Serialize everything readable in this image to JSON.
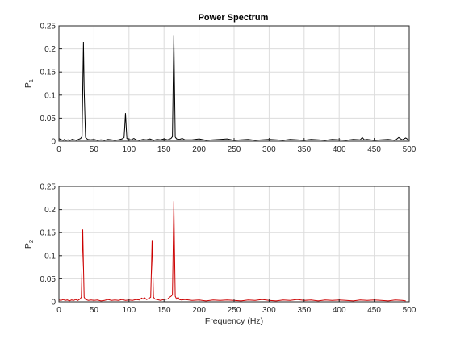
{
  "chart_data": [
    {
      "type": "line",
      "title": "Power Spectrum",
      "ylabel": "P",
      "ylabel_sub": "1",
      "xlabel": "",
      "xlim": [
        0,
        500
      ],
      "ylim": [
        0,
        0.25
      ],
      "xticks": [
        0,
        50,
        100,
        150,
        200,
        250,
        300,
        350,
        400,
        450,
        500
      ],
      "yticks": [
        0,
        0.05,
        0.1,
        0.15,
        0.2,
        0.25
      ],
      "yticklabels": [
        "0",
        "0.05",
        "0.1",
        "0.15",
        "0.2",
        "0.25"
      ],
      "grid": true,
      "color": "#000000",
      "series": [
        {
          "x": [
            0,
            2,
            4,
            6,
            8,
            10,
            13,
            16,
            19,
            22,
            25,
            28,
            31,
            33,
            34,
            35,
            36,
            38,
            41,
            45,
            50,
            55,
            60,
            65,
            70,
            75,
            80,
            85,
            90,
            93,
            94,
            95,
            96,
            97,
            99,
            103,
            107,
            110,
            115,
            120,
            125,
            130,
            135,
            140,
            145,
            150,
            155,
            160,
            162,
            163,
            164,
            165,
            166,
            168,
            172,
            176,
            180,
            190,
            200,
            210,
            220,
            230,
            240,
            250,
            260,
            270,
            280,
            290,
            300,
            310,
            320,
            330,
            340,
            350,
            360,
            370,
            380,
            390,
            400,
            410,
            420,
            430,
            433,
            436,
            440,
            450,
            460,
            470,
            480,
            485,
            490,
            495,
            500
          ],
          "y": [
            0.006,
            0.004,
            0.003,
            0.002,
            0.004,
            0.002,
            0.003,
            0.002,
            0.004,
            0.003,
            0.002,
            0.004,
            0.006,
            0.01,
            0.113,
            0.215,
            0.113,
            0.008,
            0.004,
            0.003,
            0.004,
            0.002,
            0.003,
            0.002,
            0.004,
            0.003,
            0.002,
            0.003,
            0.005,
            0.008,
            0.032,
            0.061,
            0.032,
            0.006,
            0.004,
            0.003,
            0.006,
            0.003,
            0.002,
            0.004,
            0.003,
            0.005,
            0.002,
            0.004,
            0.003,
            0.005,
            0.003,
            0.006,
            0.01,
            0.118,
            0.23,
            0.118,
            0.009,
            0.005,
            0.004,
            0.006,
            0.003,
            0.003,
            0.005,
            0.002,
            0.003,
            0.004,
            0.005,
            0.002,
            0.003,
            0.004,
            0.002,
            0.003,
            0.004,
            0.003,
            0.002,
            0.004,
            0.003,
            0.002,
            0.004,
            0.003,
            0.002,
            0.004,
            0.003,
            0.002,
            0.004,
            0.003,
            0.008,
            0.003,
            0.004,
            0.002,
            0.003,
            0.004,
            0.002,
            0.008,
            0.003,
            0.007,
            0.002
          ]
        }
      ]
    },
    {
      "type": "line",
      "title": "",
      "ylabel": "P",
      "ylabel_sub": "2",
      "xlabel": "Frequency (Hz)",
      "xlim": [
        0,
        500
      ],
      "ylim": [
        0,
        0.25
      ],
      "xticks": [
        0,
        50,
        100,
        150,
        200,
        250,
        300,
        350,
        400,
        450,
        500
      ],
      "yticks": [
        0,
        0.05,
        0.1,
        0.15,
        0.2,
        0.25
      ],
      "yticklabels": [
        "0",
        "0.05",
        "0.1",
        "0.15",
        "0.2",
        "0.25"
      ],
      "grid": true,
      "color": "#cc0000",
      "series": [
        {
          "x": [
            0,
            3,
            6,
            9,
            12,
            15,
            18,
            21,
            24,
            27,
            30,
            32,
            33,
            34,
            35,
            36,
            38,
            42,
            46,
            50,
            55,
            60,
            65,
            70,
            75,
            80,
            85,
            90,
            95,
            100,
            105,
            110,
            115,
            118,
            120,
            122,
            125,
            128,
            131,
            132,
            133,
            134,
            135,
            137,
            140,
            145,
            150,
            155,
            158,
            160,
            162,
            163,
            164,
            165,
            166,
            168,
            170,
            172,
            175,
            180,
            190,
            200,
            210,
            220,
            230,
            240,
            250,
            260,
            270,
            280,
            290,
            300,
            310,
            320,
            330,
            340,
            350,
            360,
            370,
            380,
            390,
            400,
            410,
            420,
            430,
            440,
            450,
            460,
            470,
            480,
            490,
            495
          ],
          "y": [
            0.004,
            0.003,
            0.005,
            0.003,
            0.004,
            0.002,
            0.004,
            0.003,
            0.005,
            0.003,
            0.006,
            0.01,
            0.08,
            0.157,
            0.08,
            0.01,
            0.005,
            0.003,
            0.004,
            0.003,
            0.004,
            0.002,
            0.003,
            0.005,
            0.003,
            0.004,
            0.003,
            0.005,
            0.003,
            0.004,
            0.003,
            0.005,
            0.004,
            0.008,
            0.006,
            0.009,
            0.005,
            0.007,
            0.01,
            0.07,
            0.134,
            0.07,
            0.01,
            0.006,
            0.005,
            0.003,
            0.005,
            0.006,
            0.01,
            0.012,
            0.015,
            0.11,
            0.218,
            0.11,
            0.012,
            0.006,
            0.01,
            0.005,
            0.004,
            0.005,
            0.003,
            0.004,
            0.002,
            0.004,
            0.003,
            0.004,
            0.003,
            0.002,
            0.004,
            0.003,
            0.005,
            0.003,
            0.002,
            0.004,
            0.003,
            0.005,
            0.003,
            0.004,
            0.002,
            0.004,
            0.003,
            0.004,
            0.003,
            0.002,
            0.004,
            0.003,
            0.004,
            0.003,
            0.002,
            0.004,
            0.003,
            0.002
          ]
        }
      ]
    }
  ]
}
